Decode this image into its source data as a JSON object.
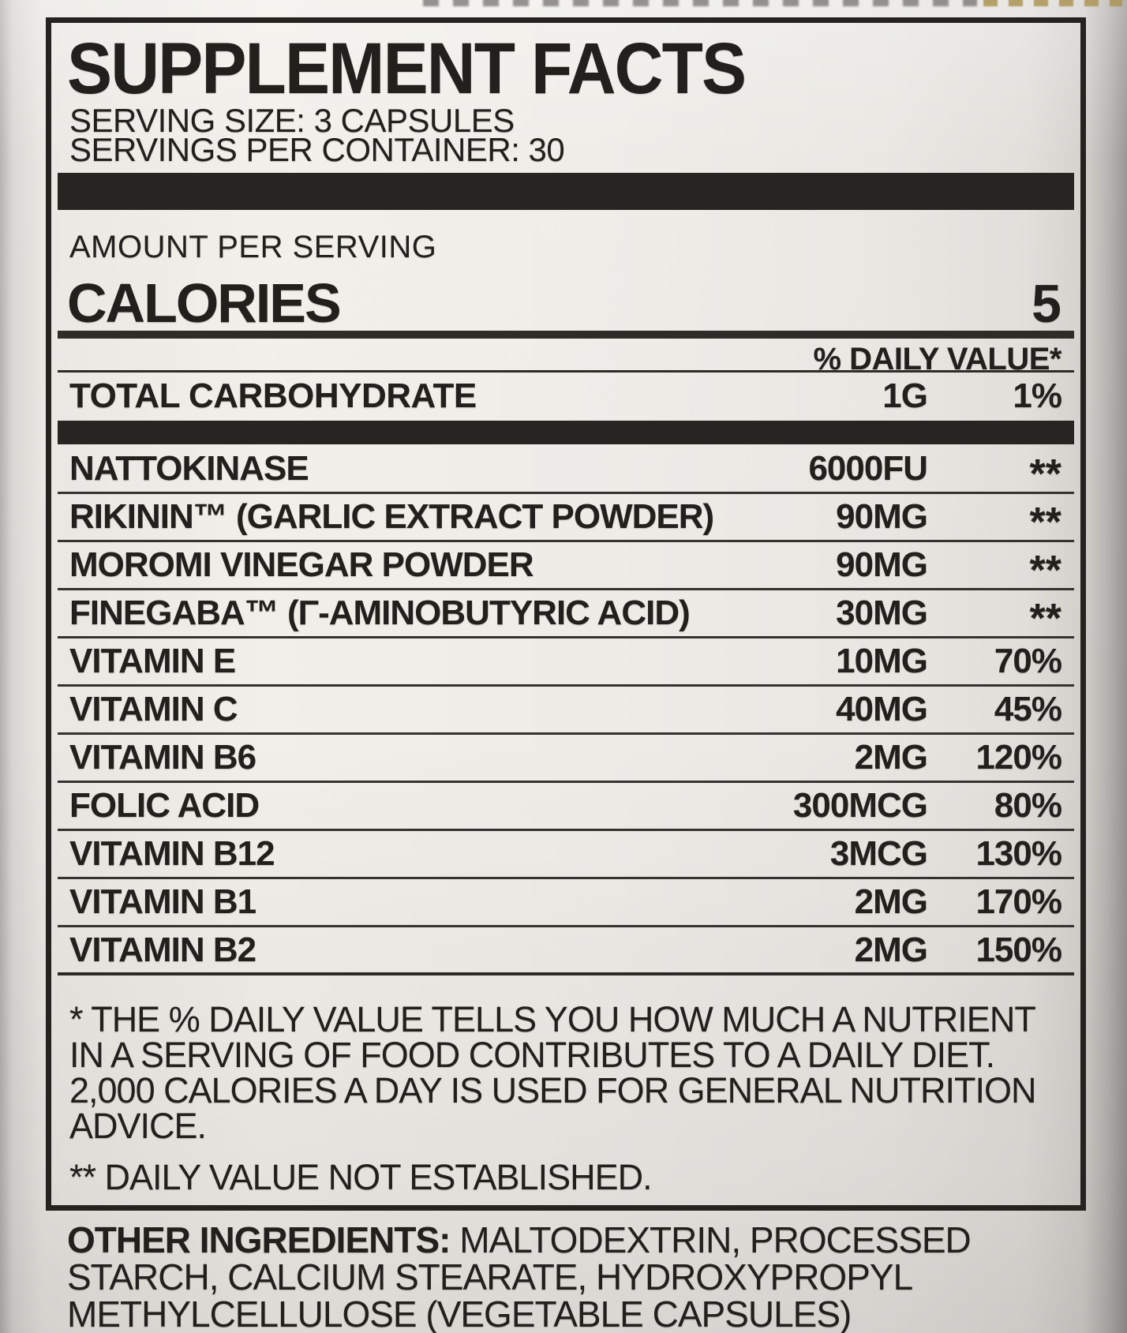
{
  "header": {
    "title": "SUPPLEMENT FACTS",
    "serving_size": "SERVING SIZE: 3 CAPSULES",
    "servings_per_container": "SERVINGS PER CONTAINER: 30"
  },
  "panel": {
    "amount_per_serving": "AMOUNT PER SERVING",
    "calories": {
      "label": "CALORIES",
      "value": "5"
    },
    "daily_value_header": "% DAILY VALUE*",
    "carbohydrate": {
      "name": "TOTAL CARBOHYDRATE",
      "amount": "1G",
      "dv": "1%"
    },
    "rows": [
      {
        "name": "NATTOKINASE",
        "amount": "6000FU",
        "dv": "**"
      },
      {
        "name": "RIKININ™ (GARLIC EXTRACT POWDER)",
        "amount": "90MG",
        "dv": "**"
      },
      {
        "name": "MOROMI VINEGAR POWDER",
        "amount": "90MG",
        "dv": "**"
      },
      {
        "name": "FINEGABA™ (Γ-AMINOBUTYRIC ACID)",
        "amount": "30MG",
        "dv": "**"
      },
      {
        "name": "VITAMIN E",
        "amount": "10MG",
        "dv": "70%"
      },
      {
        "name": "VITAMIN C",
        "amount": "40MG",
        "dv": "45%"
      },
      {
        "name": "VITAMIN B6",
        "amount": "2MG",
        "dv": "120%"
      },
      {
        "name": "FOLIC ACID",
        "amount": "300MCG",
        "dv": "80%"
      },
      {
        "name": "VITAMIN B12",
        "amount": "3MCG",
        "dv": "130%"
      },
      {
        "name": "VITAMIN B1",
        "amount": "2MG",
        "dv": "170%"
      },
      {
        "name": "VITAMIN B2",
        "amount": "2MG",
        "dv": "150%"
      }
    ],
    "footnote_lines": [
      "* THE % DAILY VALUE TELLS YOU HOW MUCH A NUTRIENT",
      "IN A SERVING OF FOOD CONTRIBUTES TO A DAILY DIET.",
      "2,000 CALORIES A DAY IS USED FOR GENERAL NUTRITION",
      "ADVICE."
    ],
    "footnote_not_established": "** DAILY VALUE NOT ESTABLISHED."
  },
  "other_ingredients": {
    "lead": "OTHER INGREDIENTS:",
    "line1_rest": " MALTODEXTRIN, PROCESSED",
    "line2": "STARCH, CALCIUM STEARATE, HYDROXYPROPYL",
    "line3": "METHYLCELLULOSE (VEGETABLE CAPSULES)"
  },
  "colors": {
    "ink": "#21201d",
    "label_background": "#ebe9e4",
    "separator_bar": "#262522",
    "clipped_gold_print": "#ac9254"
  }
}
